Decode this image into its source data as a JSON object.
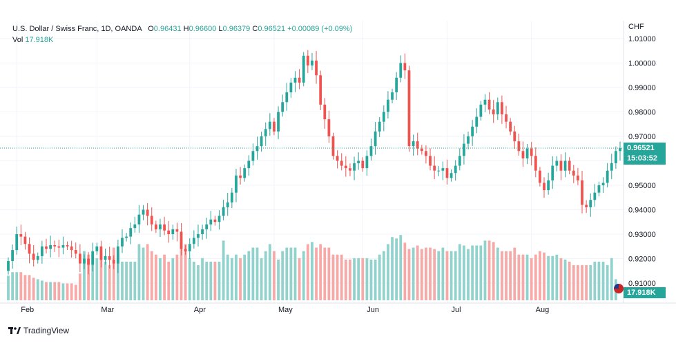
{
  "header": {
    "symbol": "U.S. Dollar / Swiss Franc, 1D, OANDA",
    "o_label": "O",
    "o_value": "0.96431",
    "h_label": "H",
    "h_value": "0.96600",
    "l_label": "L",
    "l_value": "0.96379",
    "c_label": "C",
    "c_value": "0.96521",
    "change": "+0.00089 (+0.09%)",
    "vol_label": "Vol",
    "vol_value": "17.918K"
  },
  "currency": "CHF",
  "price_badge": {
    "price": "0.96521",
    "countdown": "15:03:52"
  },
  "volume_badge": "17.918K",
  "brand": "TradingView",
  "colors": {
    "up": "#26a69a",
    "down": "#ef5350",
    "vol_up": "#92d2cc",
    "vol_down": "#f7a9a7",
    "grid": "#f0f3fa",
    "last_line": "#26a69a"
  },
  "chart_data": {
    "type": "candlestick",
    "y_ticks": [
      "1.01000",
      "1.00000",
      "0.99000",
      "0.98000",
      "0.97000",
      "0.96000",
      "0.95000",
      "0.94000",
      "0.93000",
      "0.92000",
      "0.91000"
    ],
    "ylim": [
      0.905,
      1.012
    ],
    "x_labels": [
      "Feb",
      "Mar",
      "Apr",
      "May",
      "Jun",
      "Jul",
      "Aug"
    ],
    "closes": [
      0.919,
      0.9235,
      0.93,
      0.929,
      0.926,
      0.922,
      0.9195,
      0.921,
      0.925,
      0.924,
      0.9255,
      0.925,
      0.9245,
      0.9255,
      0.925,
      0.9235,
      0.922,
      0.918,
      0.92,
      0.9175,
      0.923,
      0.925,
      0.9195,
      0.921,
      0.9195,
      0.918,
      0.925,
      0.9285,
      0.929,
      0.9325,
      0.934,
      0.938,
      0.94,
      0.9375,
      0.934,
      0.932,
      0.934,
      0.9315,
      0.93,
      0.932,
      0.931,
      0.924,
      0.923,
      0.926,
      0.9285,
      0.93,
      0.932,
      0.934,
      0.936,
      0.935,
      0.9375,
      0.941,
      0.943,
      0.947,
      0.954,
      0.953,
      0.957,
      0.96,
      0.964,
      0.966,
      0.97,
      0.973,
      0.976,
      0.972,
      0.98,
      0.984,
      0.988,
      0.992,
      0.994,
      0.992,
      1.003,
      0.999,
      1.001,
      0.995,
      0.983,
      0.977,
      0.97,
      0.962,
      0.96,
      0.958,
      0.957,
      0.956,
      0.959,
      0.96,
      0.957,
      0.962,
      0.966,
      0.972,
      0.976,
      0.98,
      0.985,
      0.988,
      0.994,
      1.0,
      0.997,
      0.966,
      0.968,
      0.965,
      0.964,
      0.962,
      0.958,
      0.956,
      0.956,
      0.957,
      0.953,
      0.955,
      0.958,
      0.962,
      0.967,
      0.97,
      0.974,
      0.978,
      0.983,
      0.985,
      0.981,
      0.979,
      0.984,
      0.979,
      0.976,
      0.972,
      0.968,
      0.964,
      0.961,
      0.965,
      0.962,
      0.956,
      0.951,
      0.948,
      0.952,
      0.958,
      0.96,
      0.956,
      0.96,
      0.956,
      0.954,
      0.952,
      0.942,
      0.941,
      0.944,
      0.947,
      0.95,
      0.951,
      0.956,
      0.959,
      0.964,
      0.9652
    ],
    "volumes": [
      3.5,
      4,
      4,
      4,
      3.6,
      3.6,
      3.2,
      3,
      2.8,
      2.6,
      2.6,
      2.6,
      2.6,
      2.4,
      2.4,
      2.4,
      2.2,
      3.8,
      7,
      6.5,
      6.5,
      6,
      7,
      5.5,
      5,
      7.5,
      6.5,
      5.5,
      5.5,
      5.5,
      5.5,
      8,
      7.5,
      8,
      7,
      6.5,
      6,
      6.5,
      5.5,
      6,
      6.5,
      8.5,
      8,
      6,
      5.5,
      5,
      6,
      5.5,
      5.5,
      5.5,
      5.5,
      8.5,
      6.5,
      6,
      6.5,
      6,
      6.5,
      7,
      7.5,
      7.5,
      6,
      7,
      8,
      7,
      5.8,
      7,
      7.5,
      7.5,
      7.5,
      6,
      7,
      8,
      8.3,
      7.5,
      8,
      7.5,
      7.5,
      6.5,
      6.5,
      6.5,
      5.8,
      5.8,
      6,
      6,
      6,
      6,
      5.8,
      5.8,
      6.5,
      7,
      8,
      9,
      8.8,
      9.3,
      8.2,
      7.3,
      7.5,
      7.8,
      7.3,
      7.5,
      7.5,
      7.3,
      7,
      7.5,
      7,
      7,
      7,
      8,
      7.8,
      7.3,
      7.8,
      7.8,
      7.8,
      8.5,
      8.5,
      8.3,
      7.5,
      7,
      7,
      7,
      7.5,
      6.5,
      6.5,
      6.5,
      6,
      6.5,
      7,
      6.8,
      6.3,
      6.3,
      6.5,
      6,
      5.8,
      5.5,
      5,
      5,
      5,
      5,
      5,
      5.5,
      5.5,
      5.5,
      5,
      6,
      3
    ]
  }
}
